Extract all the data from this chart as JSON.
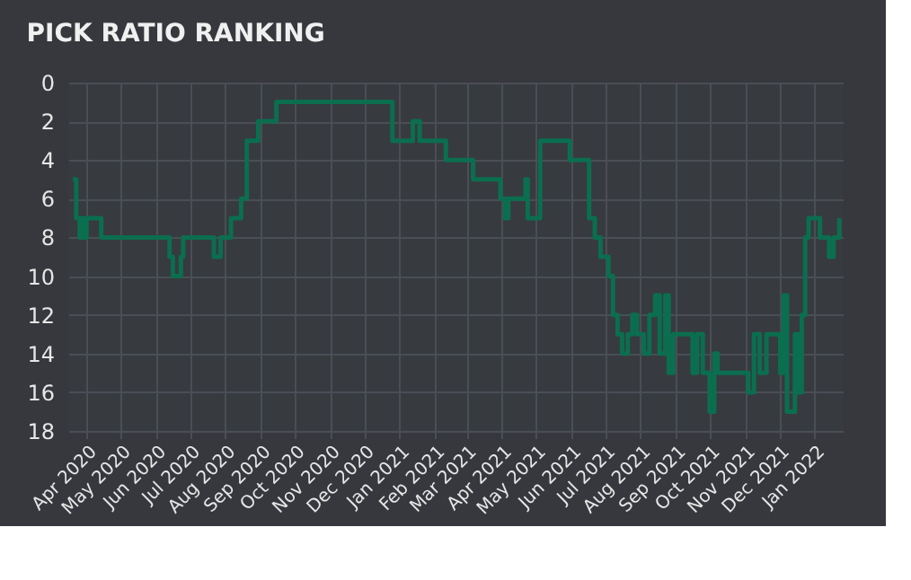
{
  "chart_data": {
    "type": "step",
    "title": "PICK RATIO RANKING",
    "x": [
      "2020-03-20",
      "2020-03-23",
      "2020-03-26",
      "2020-03-29",
      "2020-03-31",
      "2020-04-01",
      "2020-04-14",
      "2020-06-13",
      "2020-06-16",
      "2020-06-23",
      "2020-06-25",
      "2020-07-22",
      "2020-07-28",
      "2020-08-06",
      "2020-08-15",
      "2020-08-20",
      "2020-08-30",
      "2020-09-15",
      "2020-12-26",
      "2021-01-13",
      "2021-01-19",
      "2021-02-11",
      "2021-03-07",
      "2021-03-31",
      "2021-04-04",
      "2021-04-07",
      "2021-04-22",
      "2021-04-24",
      "2021-05-05",
      "2021-05-31",
      "2021-06-17",
      "2021-06-22",
      "2021-06-27",
      "2021-07-04",
      "2021-07-08",
      "2021-07-12",
      "2021-07-16",
      "2021-07-21",
      "2021-07-25",
      "2021-07-29",
      "2021-08-04",
      "2021-08-09",
      "2021-08-14",
      "2021-08-18",
      "2021-08-23",
      "2021-08-26",
      "2021-08-30",
      "2021-09-16",
      "2021-09-20",
      "2021-09-25",
      "2021-10-01",
      "2021-10-05",
      "2021-10-08",
      "2021-11-04",
      "2021-11-09",
      "2021-11-14",
      "2021-11-20",
      "2021-12-02",
      "2021-12-05",
      "2021-12-08",
      "2021-12-15",
      "2021-12-18",
      "2021-12-21",
      "2021-12-24",
      "2021-12-27",
      "2022-01-06",
      "2022-01-14",
      "2022-01-18",
      "2022-01-23"
    ],
    "series": [
      {
        "color": "#0b6e4f",
        "values": [
          5,
          7,
          8,
          7,
          8,
          7,
          8,
          9,
          10,
          9,
          8,
          9,
          8,
          7,
          6,
          3,
          2,
          1,
          3,
          2,
          3,
          4,
          5,
          6,
          7,
          6,
          5,
          7,
          3,
          4,
          7,
          8,
          9,
          10,
          12,
          13,
          14,
          13,
          12,
          13,
          14,
          12,
          11,
          14,
          11,
          15,
          13,
          15,
          13,
          15,
          17,
          14,
          15,
          16,
          13,
          15,
          13,
          15,
          11,
          17,
          13,
          16,
          12,
          8,
          7,
          8,
          9,
          8,
          7
        ]
      }
    ],
    "xlim": [
      "2020-03-16",
      "2022-01-26"
    ],
    "xticks": [
      {
        "value": "2020-04-01",
        "label": "Apr 2020"
      },
      {
        "value": "2020-05-01",
        "label": "May 2020"
      },
      {
        "value": "2020-06-01",
        "label": "Jun 2020"
      },
      {
        "value": "2020-07-01",
        "label": "Jul 2020"
      },
      {
        "value": "2020-08-01",
        "label": "Aug 2020"
      },
      {
        "value": "2020-09-01",
        "label": "Sep 2020"
      },
      {
        "value": "2020-10-01",
        "label": "Oct 2020"
      },
      {
        "value": "2020-11-01",
        "label": "Nov 2020"
      },
      {
        "value": "2020-12-01",
        "label": "Dec 2020"
      },
      {
        "value": "2021-01-01",
        "label": "Jan 2021"
      },
      {
        "value": "2021-02-01",
        "label": "Feb 2021"
      },
      {
        "value": "2021-03-01",
        "label": "Mar 2021"
      },
      {
        "value": "2021-04-01",
        "label": "Apr 2021"
      },
      {
        "value": "2021-05-01",
        "label": "May 2021"
      },
      {
        "value": "2021-06-01",
        "label": "Jun 2021"
      },
      {
        "value": "2021-07-01",
        "label": "Jul 2021"
      },
      {
        "value": "2021-08-01",
        "label": "Aug 2021"
      },
      {
        "value": "2021-09-01",
        "label": "Sep 2021"
      },
      {
        "value": "2021-10-01",
        "label": "Oct 2021"
      },
      {
        "value": "2021-11-01",
        "label": "Nov 2021"
      },
      {
        "value": "2021-12-01",
        "label": "Dec 2021"
      },
      {
        "value": "2022-01-01",
        "label": "Jan 2022"
      }
    ],
    "ylim": [
      18,
      0
    ],
    "yticks": [
      0,
      2,
      4,
      6,
      8,
      10,
      12,
      14,
      16,
      18
    ],
    "grid": true,
    "legend": false,
    "line_style": "solid",
    "marker": "none"
  }
}
